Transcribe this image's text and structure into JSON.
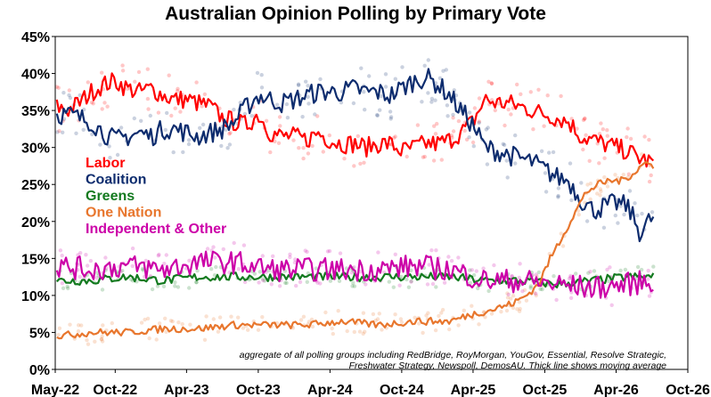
{
  "chart_data": {
    "type": "line",
    "title": "Australian Opinion Polling by Primary Vote",
    "xlabel": "",
    "ylabel": "",
    "ylim": [
      0,
      45
    ],
    "yticks": [
      "0%",
      "5%",
      "10%",
      "15%",
      "20%",
      "25%",
      "30%",
      "35%",
      "40%",
      "45%"
    ],
    "xlim": [
      "2022-05-01",
      "2026-10-01"
    ],
    "xticks": [
      {
        "date": "2022-05-01",
        "label": "May-22"
      },
      {
        "date": "2022-10-01",
        "label": "Oct-22"
      },
      {
        "date": "2023-04-01",
        "label": "Apr-23"
      },
      {
        "date": "2023-10-01",
        "label": "Oct-23"
      },
      {
        "date": "2024-04-01",
        "label": "Apr-24"
      },
      {
        "date": "2024-10-01",
        "label": "Oct-24"
      },
      {
        "date": "2025-04-01",
        "label": "Apr-25"
      },
      {
        "date": "2025-10-01",
        "label": "Oct-25"
      },
      {
        "date": "2026-04-01",
        "label": "Apr-26"
      },
      {
        "date": "2026-10-01",
        "label": "Oct-26"
      }
    ],
    "grid": false,
    "legend_position": "left",
    "note_lines": [
      "aggregate of all polling groups including RedBridge, RoyMorgan, YouGov, Essential, Resolve Strategic,",
      "Freshwater Strategy, Newspoll, DemosAU. Thick line shows moving average"
    ],
    "series": [
      {
        "name": "Labor",
        "color": "#ff0000",
        "x": [
          "2022-05-05",
          "2022-06-01",
          "2022-07-01",
          "2022-08-01",
          "2022-09-01",
          "2022-10-01",
          "2022-11-01",
          "2022-12-01",
          "2023-01-01",
          "2023-02-01",
          "2023-03-01",
          "2023-04-01",
          "2023-05-01",
          "2023-06-01",
          "2023-07-01",
          "2023-08-01",
          "2023-09-01",
          "2023-10-01",
          "2023-11-01",
          "2023-12-01",
          "2024-01-01",
          "2024-02-01",
          "2024-03-01",
          "2024-04-01",
          "2024-05-01",
          "2024-06-01",
          "2024-07-01",
          "2024-08-01",
          "2024-09-01",
          "2024-10-01",
          "2024-11-01",
          "2024-12-01",
          "2025-01-01",
          "2025-02-01",
          "2025-03-01",
          "2025-04-01",
          "2025-05-01",
          "2025-06-01",
          "2025-07-01",
          "2025-08-01",
          "2025-09-01",
          "2025-10-01",
          "2025-11-01",
          "2025-12-01",
          "2026-01-01",
          "2026-02-01",
          "2026-03-01",
          "2026-04-01",
          "2026-05-01",
          "2026-06-01",
          "2026-07-01"
        ],
        "values": [
          35.5,
          35.0,
          36.0,
          37.5,
          38.5,
          39.0,
          38.0,
          37.5,
          38.0,
          37.0,
          36.5,
          36.5,
          36.0,
          35.5,
          34.0,
          33.5,
          33.0,
          34.5,
          32.0,
          31.5,
          31.5,
          31.0,
          32.0,
          31.0,
          30.5,
          30.5,
          30.0,
          30.5,
          30.5,
          29.5,
          30.0,
          30.5,
          30.5,
          31.0,
          32.0,
          33.5,
          36.5,
          36.0,
          36.0,
          35.5,
          35.0,
          34.5,
          34.0,
          33.5,
          31.5,
          31.0,
          30.5,
          30.0,
          29.5,
          28.5,
          28.0
        ]
      },
      {
        "name": "Coalition",
        "color": "#0d2c6e",
        "x": [
          "2022-05-05",
          "2022-06-01",
          "2022-07-01",
          "2022-08-01",
          "2022-09-01",
          "2022-10-01",
          "2022-11-01",
          "2022-12-01",
          "2023-01-01",
          "2023-02-01",
          "2023-03-01",
          "2023-04-01",
          "2023-05-01",
          "2023-06-01",
          "2023-07-01",
          "2023-08-01",
          "2023-09-01",
          "2023-10-01",
          "2023-11-01",
          "2023-12-01",
          "2024-01-01",
          "2024-02-01",
          "2024-03-01",
          "2024-04-01",
          "2024-05-01",
          "2024-06-01",
          "2024-07-01",
          "2024-08-01",
          "2024-09-01",
          "2024-10-01",
          "2024-11-01",
          "2024-12-01",
          "2025-01-01",
          "2025-02-01",
          "2025-03-01",
          "2025-04-01",
          "2025-05-01",
          "2025-06-01",
          "2025-07-01",
          "2025-08-01",
          "2025-09-01",
          "2025-10-01",
          "2025-11-01",
          "2025-12-01",
          "2026-01-01",
          "2026-02-01",
          "2026-03-01",
          "2026-04-01",
          "2026-05-01",
          "2026-06-01",
          "2026-07-01"
        ],
        "values": [
          34.5,
          34.5,
          34.0,
          33.5,
          32.0,
          31.0,
          31.5,
          32.0,
          31.5,
          32.5,
          32.5,
          32.0,
          31.5,
          32.0,
          32.5,
          33.5,
          35.5,
          37.0,
          36.5,
          36.0,
          36.5,
          37.0,
          37.5,
          37.5,
          37.5,
          38.0,
          37.5,
          37.5,
          37.0,
          38.0,
          39.0,
          39.5,
          38.5,
          37.0,
          35.0,
          33.0,
          30.0,
          29.5,
          29.0,
          28.5,
          28.0,
          27.0,
          26.0,
          25.5,
          23.0,
          21.5,
          22.0,
          22.5,
          22.0,
          18.5,
          20.5
        ]
      },
      {
        "name": "Greens",
        "color": "#137a1f",
        "x": [
          "2022-05-05",
          "2022-08-01",
          "2022-11-01",
          "2023-02-01",
          "2023-05-01",
          "2023-08-01",
          "2023-11-01",
          "2024-02-01",
          "2024-05-01",
          "2024-08-01",
          "2024-11-01",
          "2025-02-01",
          "2025-05-01",
          "2025-08-01",
          "2025-11-01",
          "2026-02-01",
          "2026-05-01",
          "2026-07-01"
        ],
        "values": [
          12.0,
          12.0,
          12.5,
          12.0,
          12.5,
          12.5,
          12.5,
          12.5,
          12.5,
          12.5,
          12.5,
          12.5,
          12.0,
          12.0,
          11.5,
          12.0,
          12.5,
          12.5
        ]
      },
      {
        "name": "One Nation",
        "color": "#e8762d",
        "x": [
          "2022-05-05",
          "2022-08-01",
          "2022-11-01",
          "2023-02-01",
          "2023-05-01",
          "2023-08-01",
          "2023-11-01",
          "2024-02-01",
          "2024-05-01",
          "2024-08-01",
          "2024-11-01",
          "2025-02-01",
          "2025-04-01",
          "2025-05-15",
          "2025-06-15",
          "2025-07-15",
          "2025-08-15",
          "2025-09-15",
          "2025-10-15",
          "2025-11-15",
          "2025-12-15",
          "2026-01-15",
          "2026-02-15",
          "2026-03-15",
          "2026-04-15",
          "2026-05-15",
          "2026-06-15",
          "2026-07-01"
        ],
        "values": [
          4.5,
          5.0,
          5.0,
          5.5,
          5.5,
          6.0,
          6.0,
          6.0,
          6.5,
          6.0,
          6.5,
          6.5,
          7.5,
          8.0,
          8.5,
          9.0,
          10.0,
          11.5,
          15.0,
          18.0,
          21.0,
          24.0,
          25.0,
          25.5,
          25.5,
          26.5,
          28.0,
          27.5
        ]
      },
      {
        "name": "Independent & Other",
        "color": "#cc00a8",
        "x": [
          "2022-05-05",
          "2022-08-01",
          "2022-11-01",
          "2023-02-01",
          "2023-05-01",
          "2023-08-01",
          "2023-11-01",
          "2024-02-01",
          "2024-05-01",
          "2024-08-01",
          "2024-11-01",
          "2025-02-01",
          "2025-05-01",
          "2025-08-01",
          "2025-11-01",
          "2026-02-01",
          "2026-05-01",
          "2026-07-01"
        ],
        "values": [
          14.0,
          13.5,
          14.0,
          13.5,
          14.5,
          14.5,
          13.5,
          13.5,
          13.5,
          13.5,
          14.0,
          13.5,
          12.0,
          12.0,
          11.5,
          11.0,
          11.5,
          12.0
        ]
      }
    ]
  }
}
